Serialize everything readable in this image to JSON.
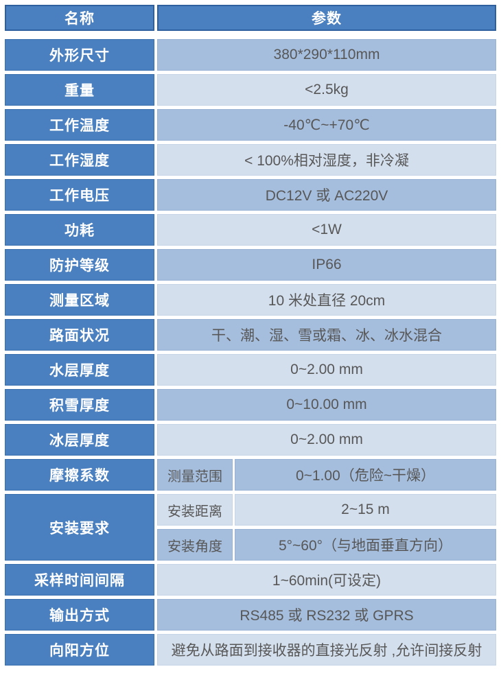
{
  "table": {
    "header": {
      "name": "名称",
      "param": "参数"
    },
    "rows": [
      {
        "label": "外形尺寸",
        "value": "380*290*110mm"
      },
      {
        "label": "重量",
        "value": "<2.5kg"
      },
      {
        "label": "工作温度",
        "value": "-40℃~+70℃"
      },
      {
        "label": "工作湿度",
        "value": "< 100%相对湿度，非冷凝"
      },
      {
        "label": "工作电压",
        "value": "DC12V 或 AC220V"
      },
      {
        "label": "功耗",
        "value": "<1W"
      },
      {
        "label": "防护等级",
        "value": "IP66"
      },
      {
        "label": "测量区域",
        "value": "10 米处直径 20cm"
      },
      {
        "label": "路面状况",
        "value": "干、潮、湿、雪或霜、冰、冰水混合"
      },
      {
        "label": "水层厚度",
        "value": "0~2.00 mm"
      },
      {
        "label": "积雪厚度",
        "value": "0~10.00 mm"
      },
      {
        "label": "冰层厚度",
        "value": "0~2.00 mm"
      },
      {
        "label": "摩擦系数",
        "sub_label": "测量范围",
        "value": "0~1.00（危险~干燥）"
      },
      {
        "label": "安装要求",
        "sub_rows": [
          {
            "sub_label": "安装距离",
            "value": "2~15 m"
          },
          {
            "sub_label": "安装角度",
            "value": "5°~60°（与地面垂直方向）"
          }
        ]
      },
      {
        "label": "采样时间间隔",
        "value": "1~60min(可设定)"
      },
      {
        "label": "输出方式",
        "value": "RS485 或 RS232 或 GPRS"
      },
      {
        "label": "向阳方位",
        "value": "避免从路面到接收器的直接光反射 ,允许间接反射"
      }
    ],
    "colors": {
      "header_blue": "#4a80bf",
      "header_border": "#2e5f9e",
      "label_blue": "#4a80bf",
      "row_medium": "#a6bedd",
      "row_light": "#d4dfee",
      "text_white": "#ffffff",
      "text_dark": "#575757"
    }
  }
}
